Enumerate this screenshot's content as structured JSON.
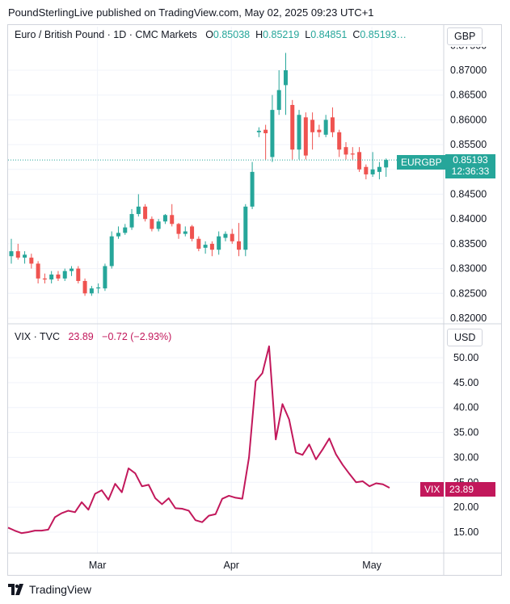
{
  "header": {
    "attribution": "PoundSterlingLive published on TradingView.com, May 02, 2025 09:23 UTC+1"
  },
  "legend": {
    "title": "Euro / British Pound · 1D · CMC Markets",
    "o_label": "O",
    "o_value": "0.85038",
    "h_label": "H",
    "h_value": "0.85219",
    "l_label": "L",
    "l_value": "0.84851",
    "c_label": "C",
    "c_value": "0.85193…"
  },
  "currency_top": "GBP",
  "currency_bottom": "USD",
  "price_tag": {
    "symbol": "EURGBP",
    "price": "0.85193",
    "countdown": "12:36:33"
  },
  "vix_legend": {
    "title": "VIX · TVC",
    "last": "23.89",
    "change": "−0.72 (−2.93%)"
  },
  "vix_tag": {
    "symbol": "VIX",
    "value": "23.89"
  },
  "footer": {
    "brand": "TradingView"
  },
  "colors": {
    "up": "#26a69a",
    "down": "#ef5350",
    "vix_line": "#c2185b",
    "grid": "#f0f3fa"
  },
  "chart_data": [
    {
      "type": "candlestick",
      "title": "Euro / British Pound · 1D · CMC Markets",
      "x_tick_labels": [
        "Mar",
        "Apr",
        "May"
      ],
      "y_tick_labels": [
        "0.82000",
        "0.82500",
        "0.83000",
        "0.83500",
        "0.84000",
        "0.84500",
        "0.85000",
        "0.85500",
        "0.86000",
        "0.86500",
        "0.87000"
      ],
      "ylim": [
        0.8195,
        0.8755
      ],
      "grid": true,
      "candles": [
        {
          "o": 0.8325,
          "h": 0.836,
          "l": 0.831,
          "c": 0.8335
        },
        {
          "o": 0.8335,
          "h": 0.835,
          "l": 0.8318,
          "c": 0.8322
        },
        {
          "o": 0.8322,
          "h": 0.8335,
          "l": 0.831,
          "c": 0.8328
        },
        {
          "o": 0.8322,
          "h": 0.833,
          "l": 0.83,
          "c": 0.831
        },
        {
          "o": 0.831,
          "h": 0.8315,
          "l": 0.827,
          "c": 0.828
        },
        {
          "o": 0.828,
          "h": 0.829,
          "l": 0.827,
          "c": 0.8278
        },
        {
          "o": 0.8278,
          "h": 0.8295,
          "l": 0.827,
          "c": 0.8288
        },
        {
          "o": 0.8288,
          "h": 0.8295,
          "l": 0.8275,
          "c": 0.828
        },
        {
          "o": 0.828,
          "h": 0.83,
          "l": 0.8275,
          "c": 0.8295
        },
        {
          "o": 0.8295,
          "h": 0.8305,
          "l": 0.8285,
          "c": 0.83
        },
        {
          "o": 0.83,
          "h": 0.8305,
          "l": 0.827,
          "c": 0.8275
        },
        {
          "o": 0.8275,
          "h": 0.828,
          "l": 0.8245,
          "c": 0.825
        },
        {
          "o": 0.825,
          "h": 0.8265,
          "l": 0.8245,
          "c": 0.826
        },
        {
          "o": 0.826,
          "h": 0.827,
          "l": 0.825,
          "c": 0.8262
        },
        {
          "o": 0.826,
          "h": 0.831,
          "l": 0.8255,
          "c": 0.8305
        },
        {
          "o": 0.8305,
          "h": 0.8375,
          "l": 0.83,
          "c": 0.8365
        },
        {
          "o": 0.8365,
          "h": 0.8385,
          "l": 0.836,
          "c": 0.8372
        },
        {
          "o": 0.8372,
          "h": 0.839,
          "l": 0.8368,
          "c": 0.8383
        },
        {
          "o": 0.8383,
          "h": 0.842,
          "l": 0.8378,
          "c": 0.841
        },
        {
          "o": 0.841,
          "h": 0.845,
          "l": 0.8405,
          "c": 0.8425
        },
        {
          "o": 0.8425,
          "h": 0.843,
          "l": 0.8395,
          "c": 0.84
        },
        {
          "o": 0.84,
          "h": 0.8405,
          "l": 0.8375,
          "c": 0.838
        },
        {
          "o": 0.838,
          "h": 0.84,
          "l": 0.8375,
          "c": 0.8395
        },
        {
          "o": 0.8395,
          "h": 0.841,
          "l": 0.839,
          "c": 0.8408
        },
        {
          "o": 0.8408,
          "h": 0.843,
          "l": 0.8385,
          "c": 0.839
        },
        {
          "o": 0.839,
          "h": 0.8392,
          "l": 0.836,
          "c": 0.837
        },
        {
          "o": 0.837,
          "h": 0.8385,
          "l": 0.8365,
          "c": 0.8375
        },
        {
          "o": 0.8385,
          "h": 0.8388,
          "l": 0.8355,
          "c": 0.836
        },
        {
          "o": 0.836,
          "h": 0.8365,
          "l": 0.8335,
          "c": 0.834
        },
        {
          "o": 0.8342,
          "h": 0.8355,
          "l": 0.833,
          "c": 0.8348
        },
        {
          "o": 0.835,
          "h": 0.8355,
          "l": 0.8325,
          "c": 0.8338
        },
        {
          "o": 0.8338,
          "h": 0.8375,
          "l": 0.8328,
          "c": 0.8365
        },
        {
          "o": 0.8362,
          "h": 0.8375,
          "l": 0.8355,
          "c": 0.837
        },
        {
          "o": 0.837,
          "h": 0.838,
          "l": 0.835,
          "c": 0.8355
        },
        {
          "o": 0.8355,
          "h": 0.8392,
          "l": 0.8325,
          "c": 0.8338
        },
        {
          "o": 0.8338,
          "h": 0.843,
          "l": 0.8325,
          "c": 0.8425
        },
        {
          "o": 0.8425,
          "h": 0.8515,
          "l": 0.842,
          "c": 0.8495
        },
        {
          "o": 0.8575,
          "h": 0.8585,
          "l": 0.8565,
          "c": 0.8578
        },
        {
          "o": 0.858,
          "h": 0.859,
          "l": 0.852,
          "c": 0.8573
        },
        {
          "o": 0.8525,
          "h": 0.865,
          "l": 0.8515,
          "c": 0.862
        },
        {
          "o": 0.862,
          "h": 0.87,
          "l": 0.861,
          "c": 0.866
        },
        {
          "o": 0.867,
          "h": 0.8735,
          "l": 0.861,
          "c": 0.87
        },
        {
          "o": 0.863,
          "h": 0.864,
          "l": 0.852,
          "c": 0.854
        },
        {
          "o": 0.854,
          "h": 0.862,
          "l": 0.852,
          "c": 0.861
        },
        {
          "o": 0.8605,
          "h": 0.8615,
          "l": 0.852,
          "c": 0.8528
        },
        {
          "o": 0.86,
          "h": 0.8615,
          "l": 0.854,
          "c": 0.8575
        },
        {
          "o": 0.858,
          "h": 0.859,
          "l": 0.8565,
          "c": 0.8575
        },
        {
          "o": 0.857,
          "h": 0.861,
          "l": 0.8565,
          "c": 0.86
        },
        {
          "o": 0.8605,
          "h": 0.8625,
          "l": 0.8565,
          "c": 0.8575
        },
        {
          "o": 0.8575,
          "h": 0.858,
          "l": 0.8525,
          "c": 0.854
        },
        {
          "o": 0.8545,
          "h": 0.8555,
          "l": 0.852,
          "c": 0.853
        },
        {
          "o": 0.8532,
          "h": 0.8545,
          "l": 0.852,
          "c": 0.853
        },
        {
          "o": 0.8535,
          "h": 0.8545,
          "l": 0.8495,
          "c": 0.85
        },
        {
          "o": 0.8505,
          "h": 0.851,
          "l": 0.848,
          "c": 0.849
        },
        {
          "o": 0.849,
          "h": 0.8535,
          "l": 0.8485,
          "c": 0.85
        },
        {
          "o": 0.8495,
          "h": 0.8515,
          "l": 0.848,
          "c": 0.8505
        },
        {
          "o": 0.8504,
          "h": 0.8522,
          "l": 0.8485,
          "c": 0.8519
        }
      ]
    },
    {
      "type": "line",
      "title": "VIX · TVC",
      "x_tick_labels": [
        "Mar",
        "Apr",
        "May"
      ],
      "y_tick_labels": [
        "15.00",
        "20.00",
        "25.00",
        "30.00",
        "35.00",
        "40.00",
        "45.00",
        "50.00"
      ],
      "ylim": [
        11.5,
        53.5
      ],
      "grid": true,
      "series": [
        {
          "values": [
            15.9,
            15.3,
            14.8,
            15.0,
            15.3,
            15.3,
            15.5,
            18.0,
            18.8,
            19.3,
            19.0,
            21.0,
            19.5,
            22.7,
            23.4,
            21.5,
            24.7,
            23.0,
            27.8,
            26.8,
            24.2,
            24.5,
            21.8,
            20.6,
            21.8,
            19.8,
            19.7,
            19.3,
            17.4,
            17.0,
            18.3,
            18.6,
            21.7,
            22.3,
            21.9,
            21.7,
            30.0,
            45.3,
            46.9,
            52.3,
            33.6,
            40.7,
            37.6,
            31.0,
            30.5,
            32.6,
            29.6,
            31.6,
            33.8,
            30.6,
            28.5,
            26.7,
            25.0,
            25.2,
            24.2,
            24.8,
            24.6,
            23.9
          ]
        }
      ]
    }
  ]
}
